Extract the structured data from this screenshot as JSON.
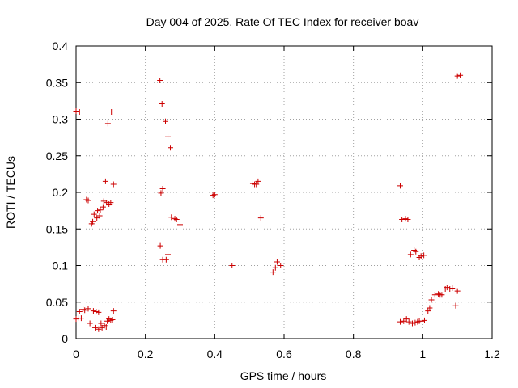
{
  "chart_data": {
    "type": "scatter",
    "title": "Day 004 of 2025, Rate Of TEC Index for receiver boav",
    "xlabel": "GPS time / hours",
    "ylabel": "ROTI / TECUs",
    "xlim": [
      0,
      1.2
    ],
    "ylim": [
      0,
      0.4
    ],
    "xticks": [
      "0",
      "0.2",
      "0.4",
      "0.6",
      "0.8",
      "1",
      "1.2"
    ],
    "yticks": [
      "0",
      "0.05",
      "0.1",
      "0.15",
      "0.2",
      "0.25",
      "0.3",
      "0.35",
      "0.4"
    ],
    "grid": true,
    "marker_color": "#cc0000",
    "marker": "plus",
    "points": [
      [
        0.0,
        0.311
      ],
      [
        0.01,
        0.31
      ],
      [
        0.0,
        0.027
      ],
      [
        0.008,
        0.028
      ],
      [
        0.01,
        0.037
      ],
      [
        0.015,
        0.028
      ],
      [
        0.02,
        0.04
      ],
      [
        0.025,
        0.039
      ],
      [
        0.03,
        0.19
      ],
      [
        0.035,
        0.189
      ],
      [
        0.035,
        0.041
      ],
      [
        0.04,
        0.021
      ],
      [
        0.045,
        0.157
      ],
      [
        0.048,
        0.16
      ],
      [
        0.05,
        0.038
      ],
      [
        0.052,
        0.17
      ],
      [
        0.055,
        0.015
      ],
      [
        0.058,
        0.037
      ],
      [
        0.06,
        0.165
      ],
      [
        0.062,
        0.175
      ],
      [
        0.065,
        0.013
      ],
      [
        0.065,
        0.036
      ],
      [
        0.068,
        0.168
      ],
      [
        0.07,
        0.176
      ],
      [
        0.072,
        0.021
      ],
      [
        0.075,
        0.015
      ],
      [
        0.078,
        0.18
      ],
      [
        0.08,
        0.188
      ],
      [
        0.082,
        0.018
      ],
      [
        0.085,
        0.215
      ],
      [
        0.087,
        0.016
      ],
      [
        0.088,
        0.186
      ],
      [
        0.09,
        0.024
      ],
      [
        0.092,
        0.294
      ],
      [
        0.095,
        0.184
      ],
      [
        0.095,
        0.027
      ],
      [
        0.1,
        0.025
      ],
      [
        0.1,
        0.186
      ],
      [
        0.102,
        0.31
      ],
      [
        0.105,
        0.026
      ],
      [
        0.108,
        0.211
      ],
      [
        0.108,
        0.038
      ],
      [
        0.242,
        0.353
      ],
      [
        0.243,
        0.127
      ],
      [
        0.245,
        0.199
      ],
      [
        0.248,
        0.321
      ],
      [
        0.25,
        0.205
      ],
      [
        0.25,
        0.108
      ],
      [
        0.258,
        0.297
      ],
      [
        0.26,
        0.108
      ],
      [
        0.265,
        0.276
      ],
      [
        0.265,
        0.115
      ],
      [
        0.272,
        0.261
      ],
      [
        0.275,
        0.166
      ],
      [
        0.285,
        0.164
      ],
      [
        0.29,
        0.163
      ],
      [
        0.3,
        0.156
      ],
      [
        0.395,
        0.196
      ],
      [
        0.4,
        0.197
      ],
      [
        0.45,
        0.1
      ],
      [
        0.51,
        0.212
      ],
      [
        0.515,
        0.211
      ],
      [
        0.52,
        0.211
      ],
      [
        0.525,
        0.215
      ],
      [
        0.533,
        0.165
      ],
      [
        0.568,
        0.091
      ],
      [
        0.575,
        0.097
      ],
      [
        0.58,
        0.105
      ],
      [
        0.59,
        0.1
      ],
      [
        0.935,
        0.209
      ],
      [
        0.935,
        0.023
      ],
      [
        0.94,
        0.163
      ],
      [
        0.945,
        0.024
      ],
      [
        0.95,
        0.164
      ],
      [
        0.953,
        0.027
      ],
      [
        0.957,
        0.163
      ],
      [
        0.96,
        0.023
      ],
      [
        0.965,
        0.115
      ],
      [
        0.97,
        0.021
      ],
      [
        0.975,
        0.121
      ],
      [
        0.978,
        0.022
      ],
      [
        0.98,
        0.119
      ],
      [
        0.985,
        0.023
      ],
      [
        0.99,
        0.111
      ],
      [
        0.99,
        0.024
      ],
      [
        0.995,
        0.113
      ],
      [
        0.998,
        0.024
      ],
      [
        1.003,
        0.114
      ],
      [
        1.005,
        0.025
      ],
      [
        1.015,
        0.038
      ],
      [
        1.02,
        0.042
      ],
      [
        1.025,
        0.053
      ],
      [
        1.035,
        0.06
      ],
      [
        1.045,
        0.061
      ],
      [
        1.05,
        0.06
      ],
      [
        1.055,
        0.06
      ],
      [
        1.065,
        0.068
      ],
      [
        1.07,
        0.07
      ],
      [
        1.078,
        0.068
      ],
      [
        1.085,
        0.069
      ],
      [
        1.095,
        0.045
      ],
      [
        1.1,
        0.065
      ],
      [
        1.1,
        0.359
      ],
      [
        1.108,
        0.36
      ]
    ]
  }
}
